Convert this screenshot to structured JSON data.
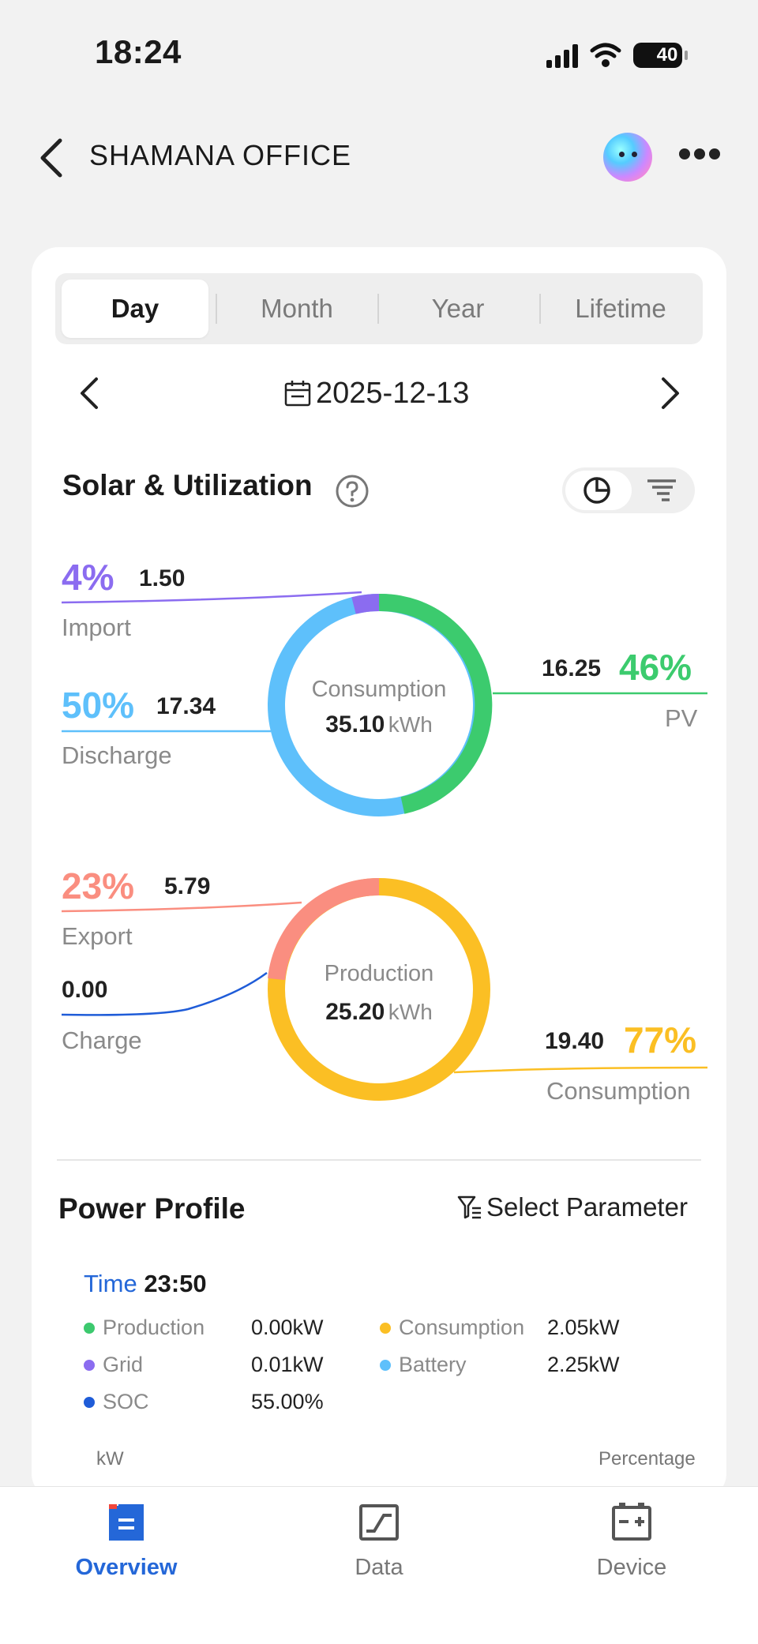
{
  "status": {
    "time": "18:24",
    "battery": "40"
  },
  "header": {
    "title": "SHAMANA OFFICE"
  },
  "tabs": [
    {
      "label": "Day",
      "active": true
    },
    {
      "label": "Month",
      "active": false
    },
    {
      "label": "Year",
      "active": false
    },
    {
      "label": "Lifetime",
      "active": false
    }
  ],
  "date": "2025-12-13",
  "solar": {
    "title": "Solar & Utilization",
    "consumption": {
      "center_label": "Consumption",
      "center_value": "35.10",
      "unit": "kWh",
      "import": {
        "pct": "4%",
        "value": "1.50",
        "label": "Import"
      },
      "discharge": {
        "pct": "50%",
        "value": "17.34",
        "label": "Discharge"
      },
      "pv": {
        "pct": "46%",
        "value": "16.25",
        "label": "PV"
      }
    },
    "production": {
      "center_label": "Production",
      "center_value": "25.20",
      "unit": "kWh",
      "export": {
        "pct": "23%",
        "value": "5.79",
        "label": "Export"
      },
      "charge": {
        "value": "0.00",
        "label": "Charge"
      },
      "consumption": {
        "pct": "77%",
        "value": "19.40",
        "label": "Consumption"
      }
    }
  },
  "power_profile": {
    "title": "Power Profile",
    "select_label": "Select Parameter",
    "time_label": "Time",
    "time_value": "23:50",
    "legend": [
      {
        "label": "Production",
        "value": "0.00kW",
        "color": "#3cc96e"
      },
      {
        "label": "Consumption",
        "value": "2.05kW",
        "color": "#fbbf24"
      },
      {
        "label": "Grid",
        "value": "0.01kW",
        "color": "#8b6cf0"
      },
      {
        "label": "Battery",
        "value": "2.25kW",
        "color": "#5ec0fb"
      },
      {
        "label": "SOC",
        "value": "55.00%",
        "color": "#1f5cd8"
      }
    ],
    "axis_left": "kW",
    "axis_right": "Percentage"
  },
  "nav": [
    {
      "label": "Overview",
      "active": true
    },
    {
      "label": "Data",
      "active": false
    },
    {
      "label": "Device",
      "active": false
    }
  ],
  "colors": {
    "pv": "#3ccb6e",
    "import": "#8b6cf0",
    "discharge": "#5ec0fb",
    "export": "#fa8e80",
    "charge": "#1f5cd8",
    "production": "#fbbf24",
    "accent": "#2467d8"
  }
}
